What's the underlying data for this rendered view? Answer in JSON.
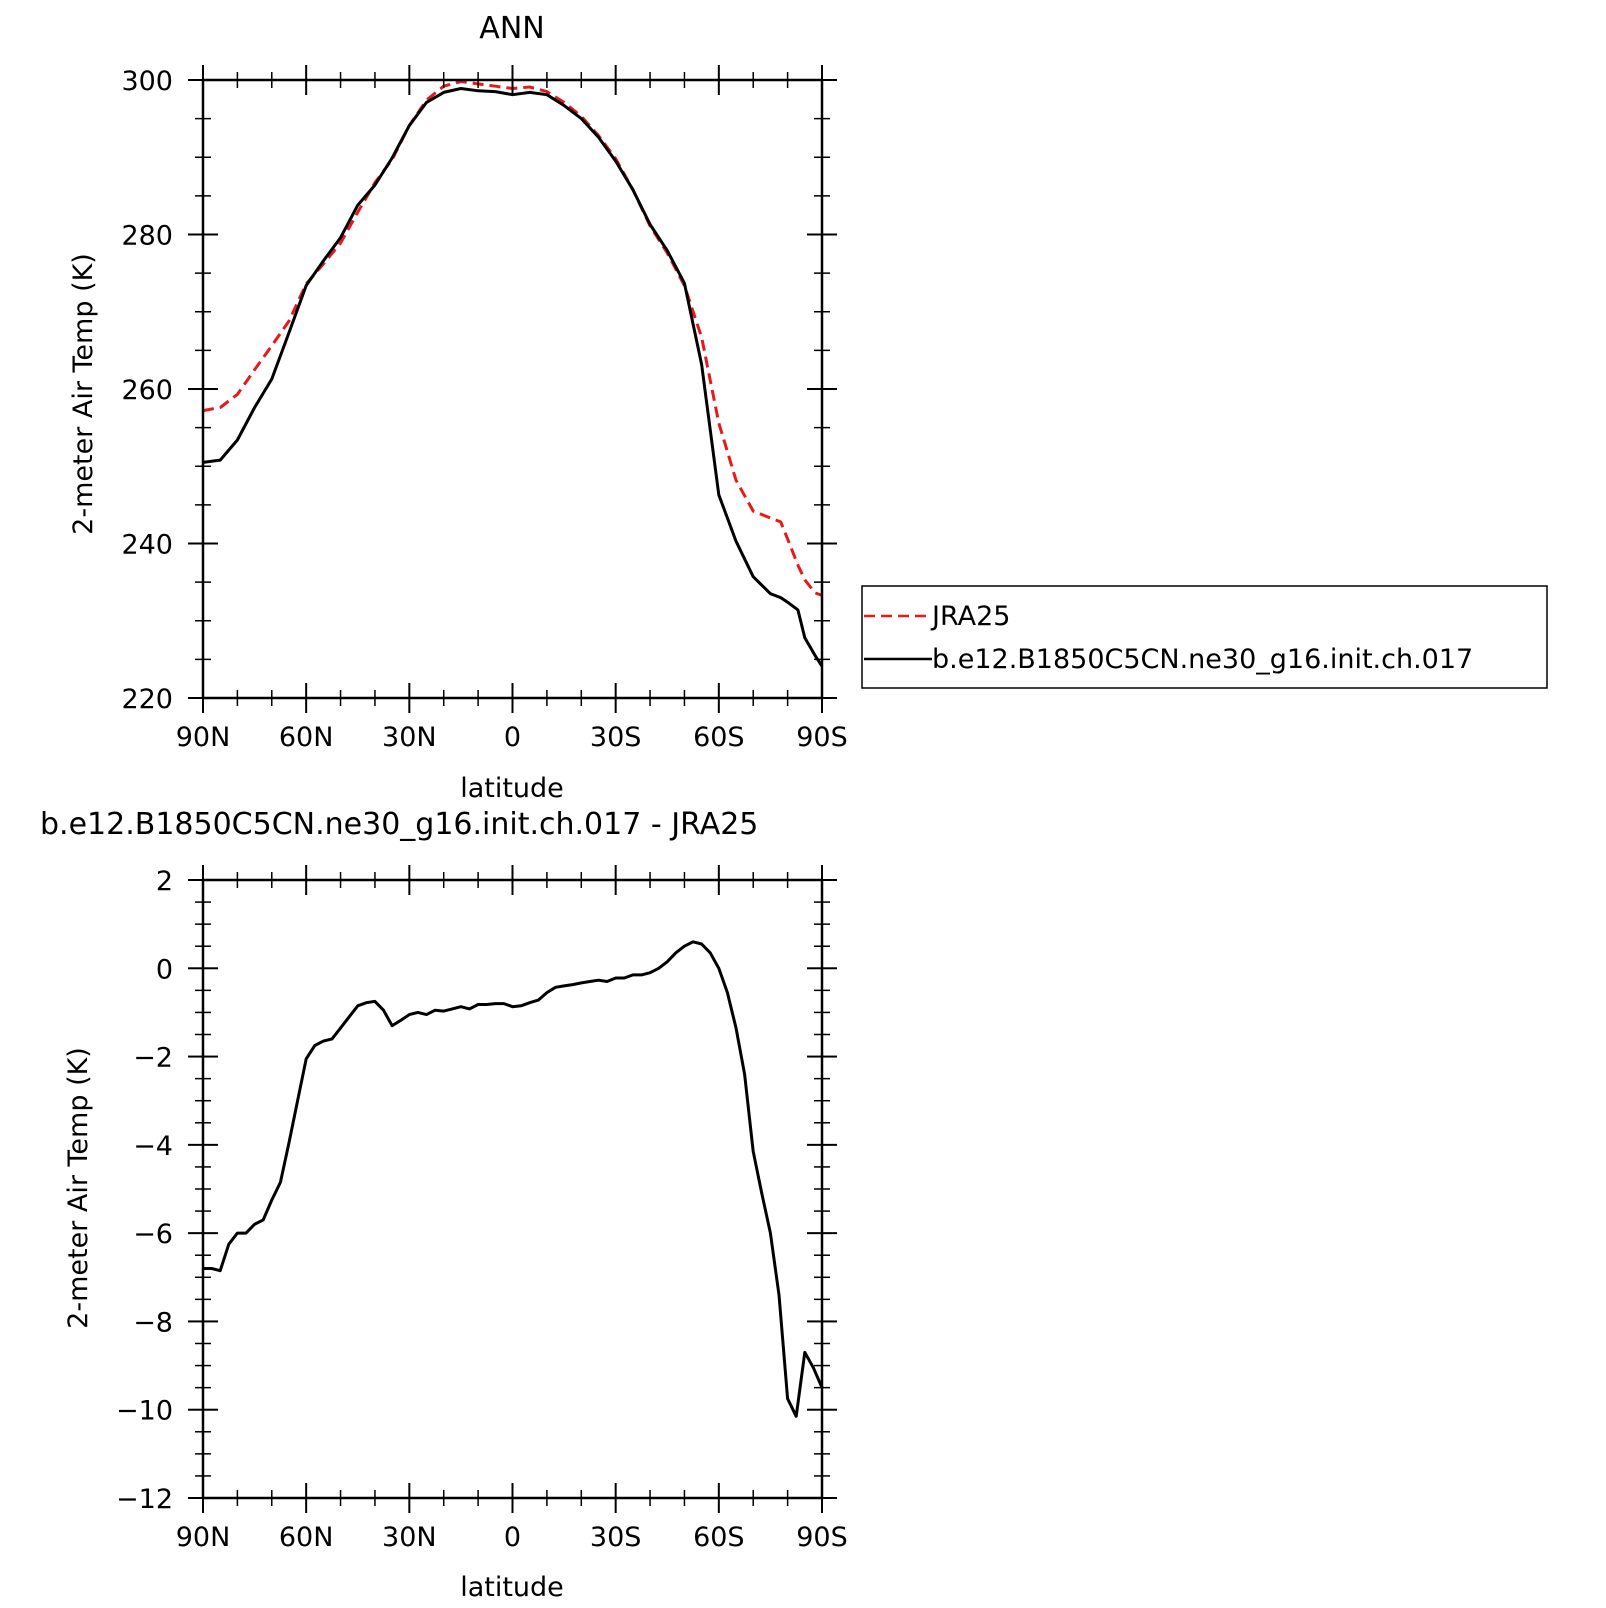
{
  "chart_data": [
    {
      "type": "line",
      "title": "ANN",
      "xlabel": "latitude",
      "ylabel": "2-meter Air Temp (K)",
      "xlim": [
        90,
        -90
      ],
      "ylim": [
        220,
        300
      ],
      "x_ticks": [
        {
          "value": 90,
          "label": "90N"
        },
        {
          "value": 60,
          "label": "60N"
        },
        {
          "value": 30,
          "label": "30N"
        },
        {
          "value": 0,
          "label": "0"
        },
        {
          "value": -30,
          "label": "30S"
        },
        {
          "value": -60,
          "label": "60S"
        },
        {
          "value": -90,
          "label": "90S"
        }
      ],
      "y_ticks": [
        {
          "value": 300,
          "label": "300"
        },
        {
          "value": 280,
          "label": "280"
        },
        {
          "value": 260,
          "label": "260"
        },
        {
          "value": 240,
          "label": "240"
        },
        {
          "value": 220,
          "label": "220"
        }
      ],
      "legend": {
        "position": "right"
      },
      "series": [
        {
          "name": "JRA25",
          "color": "#e8191c",
          "dash": "dashed",
          "x": [
            90,
            85,
            80,
            75,
            70,
            65,
            60,
            55,
            50,
            45,
            40,
            35,
            30,
            25,
            20,
            15,
            10,
            5,
            0,
            -5,
            -10,
            -15,
            -20,
            -25,
            -30,
            -35,
            -40,
            -45,
            -50,
            -55,
            -60,
            -65,
            -70,
            -75,
            -78,
            -80,
            -83,
            -85,
            -88,
            -90
          ],
          "y": [
            257.2,
            257.6,
            259.3,
            262.5,
            265.6,
            268.8,
            273.6,
            276.2,
            278.9,
            282.9,
            286.7,
            289.7,
            294.1,
            297.4,
            299.2,
            299.8,
            299.5,
            299.2,
            298.9,
            299.1,
            298.5,
            297.1,
            295.3,
            292.8,
            289.8,
            285.8,
            281.1,
            277.6,
            273.4,
            266.7,
            255.6,
            248.2,
            244.2,
            243.3,
            242.8,
            240.6,
            237.2,
            235.3,
            233.6,
            233.3
          ]
        },
        {
          "name": "b.e12.B1850C5CN.ne30_g16.init.ch.017",
          "color": "#000000",
          "dash": "solid",
          "x": [
            90,
            85,
            80,
            75,
            70,
            65,
            60,
            55,
            50,
            45,
            40,
            35,
            30,
            25,
            20,
            15,
            10,
            5,
            0,
            -5,
            -10,
            -15,
            -20,
            -25,
            -30,
            -35,
            -40,
            -45,
            -50,
            -55,
            -60,
            -65,
            -70,
            -75,
            -78,
            -80,
            -83,
            -85,
            -88,
            -90
          ],
          "y": [
            250.5,
            250.8,
            253.4,
            257.6,
            261.3,
            267.3,
            273.4,
            276.6,
            279.6,
            283.8,
            286.4,
            289.9,
            294.1,
            297.1,
            298.4,
            298.9,
            298.6,
            298.5,
            298.1,
            298.4,
            298.1,
            296.7,
            295.0,
            292.6,
            289.5,
            285.8,
            281.3,
            277.9,
            273.7,
            263.2,
            246.3,
            240.3,
            235.7,
            233.5,
            233.0,
            232.4,
            231.4,
            227.8,
            225.5,
            224.1
          ]
        }
      ]
    },
    {
      "type": "line",
      "title": "b.e12.B1850C5CN.ne30_g16.init.ch.017 - JRA25",
      "xlabel": "latitude",
      "ylabel": "2-meter Air Temp (K)",
      "xlim": [
        90,
        -90
      ],
      "ylim": [
        -12,
        2
      ],
      "x_ticks": [
        {
          "value": 90,
          "label": "90N"
        },
        {
          "value": 60,
          "label": "60N"
        },
        {
          "value": 30,
          "label": "30N"
        },
        {
          "value": 0,
          "label": "0"
        },
        {
          "value": -30,
          "label": "30S"
        },
        {
          "value": -60,
          "label": "60S"
        },
        {
          "value": -90,
          "label": "90S"
        }
      ],
      "y_ticks": [
        {
          "value": 2,
          "label": "2"
        },
        {
          "value": 0,
          "label": "0"
        },
        {
          "value": -2,
          "label": "−2"
        },
        {
          "value": -4,
          "label": "−4"
        },
        {
          "value": -6,
          "label": "−6"
        },
        {
          "value": -8,
          "label": "−8"
        },
        {
          "value": -10,
          "label": "−10"
        },
        {
          "value": -12,
          "label": "−12"
        }
      ],
      "series": [
        {
          "color": "#000000",
          "dash": "solid",
          "x": [
            90,
            87.5,
            85,
            82.5,
            80,
            77.5,
            75,
            72.5,
            70,
            67.5,
            65,
            62.5,
            60,
            57.5,
            55,
            52.5,
            50,
            47.5,
            45,
            42.5,
            40,
            37.5,
            35,
            32.5,
            30,
            27.5,
            25,
            22.5,
            20,
            17.5,
            15,
            12.5,
            10,
            7.5,
            5,
            2.5,
            0,
            -2.5,
            -5,
            -7.5,
            -10,
            -12.5,
            -15,
            -17.5,
            -20,
            -22.5,
            -25,
            -27.5,
            -30,
            -32.5,
            -35,
            -37.5,
            -40,
            -42.5,
            -45,
            -47.5,
            -50,
            -52.5,
            -55,
            -57.5,
            -60,
            -62.5,
            -65,
            -67.5,
            -70,
            -72.5,
            -75,
            -77.5,
            -80,
            -82.5,
            -85,
            -87.5,
            -90
          ],
          "y": [
            -6.8,
            -6.8,
            -6.85,
            -6.25,
            -6.0,
            -6.0,
            -5.8,
            -5.7,
            -5.25,
            -4.85,
            -3.95,
            -3.0,
            -2.05,
            -1.75,
            -1.65,
            -1.6,
            -1.35,
            -1.1,
            -0.85,
            -0.78,
            -0.75,
            -0.95,
            -1.3,
            -1.18,
            -1.05,
            -1.0,
            -1.05,
            -0.95,
            -0.97,
            -0.92,
            -0.87,
            -0.92,
            -0.82,
            -0.82,
            -0.8,
            -0.8,
            -0.87,
            -0.85,
            -0.78,
            -0.72,
            -0.55,
            -0.43,
            -0.4,
            -0.37,
            -0.33,
            -0.3,
            -0.27,
            -0.3,
            -0.22,
            -0.22,
            -0.15,
            -0.15,
            -0.1,
            0.0,
            0.15,
            0.35,
            0.5,
            0.6,
            0.55,
            0.35,
            0.0,
            -0.55,
            -1.35,
            -2.4,
            -4.15,
            -5.1,
            -6.0,
            -7.4,
            -9.75,
            -10.15,
            -8.7,
            -9.05,
            -9.5
          ]
        }
      ]
    }
  ]
}
